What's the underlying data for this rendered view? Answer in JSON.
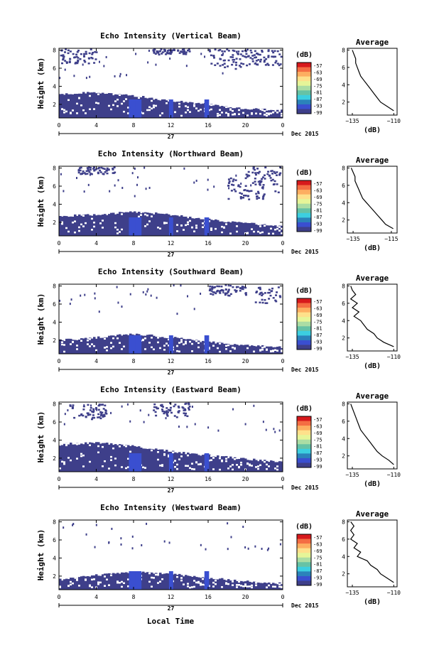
{
  "figure": {
    "xlabel": "Local Time",
    "date_label": "Dec 2015",
    "day_label": "27",
    "colorbar_unit": "(dB)",
    "colorbar_ticks": [
      "-57",
      "-63",
      "-69",
      "-75",
      "-81",
      "-87",
      "-93",
      "-99"
    ],
    "colorbar_colors": [
      "#d7191c",
      "#f46d43",
      "#fdae61",
      "#fee08b",
      "#e6f598",
      "#abdda4",
      "#66c2a5",
      "#3ccfe0",
      "#2b83ba",
      "#3a4fd0",
      "#3e3f8a"
    ],
    "background_echo_color": "#3e3f8a",
    "bright_echo_color": "#3a4fd0"
  },
  "chart_data": [
    {
      "type": "heatmap",
      "title": "Echo Intensity (Vertical Beam)",
      "ylabel": "Height (km)",
      "x_ticks": [
        "0",
        "4",
        "8",
        "12",
        "16",
        "20",
        "0"
      ],
      "y_ticks": [
        "2",
        "4",
        "6",
        "8"
      ],
      "xlim": [
        0,
        24
      ],
      "ylim": [
        0.5,
        8.2
      ],
      "layer_top_km": [
        3.1,
        3.2,
        3.2,
        3.3,
        3.3,
        3.2,
        3.1,
        3.0,
        2.9,
        2.8,
        2.6,
        2.5,
        2.4,
        2.3,
        2.2,
        2.1,
        2.0,
        1.8,
        1.7,
        1.6,
        1.5,
        1.5,
        1.4,
        1.3,
        1.3
      ],
      "upper_clutter": [
        [
          0,
          8.2,
          6.6
        ],
        [
          10,
          8.2,
          7.6
        ],
        [
          16,
          8.2,
          6.0
        ],
        [
          20,
          8.2,
          6.4
        ]
      ],
      "profile": {
        "title": "Average",
        "xlabel": "(dB)",
        "xticks": [
          "-135",
          "-110"
        ],
        "xlim": [
          -138,
          -108
        ],
        "yticks": [
          "2",
          "4",
          "6",
          "8"
        ],
        "ylim": [
          0.5,
          8.2
        ],
        "heights_km": [
          8.0,
          7.5,
          7.0,
          6.5,
          6.0,
          5.5,
          5.0,
          4.5,
          4.0,
          3.5,
          3.0,
          2.5,
          2.0,
          1.5,
          1.0
        ],
        "values_db": [
          -135,
          -134,
          -133,
          -133,
          -132,
          -131,
          -130,
          -128,
          -126,
          -124,
          -122,
          -120,
          -118,
          -114,
          -110
        ]
      }
    },
    {
      "type": "heatmap",
      "title": "Echo Intensity (Northward Beam)",
      "ylabel": "Height (km)",
      "x_ticks": [
        "0",
        "4",
        "8",
        "12",
        "16",
        "20",
        "0"
      ],
      "y_ticks": [
        "2",
        "4",
        "6",
        "8"
      ],
      "xlim": [
        0,
        24
      ],
      "ylim": [
        0.5,
        8.2
      ],
      "layer_top_km": [
        2.6,
        2.7,
        2.8,
        2.8,
        2.9,
        2.9,
        3.0,
        3.1,
        3.1,
        3.0,
        3.0,
        2.9,
        2.8,
        2.7,
        2.5,
        2.4,
        2.3,
        2.2,
        2.1,
        2.0,
        2.0,
        1.8,
        1.7,
        1.6,
        1.5
      ],
      "upper_clutter": [
        [
          2,
          8.2,
          7.4
        ],
        [
          18,
          7.0,
          4.6
        ],
        [
          20,
          8.2,
          5.2
        ]
      ],
      "profile": {
        "title": "Average",
        "xlabel": "(dB)",
        "xticks": [
          "-135",
          "-115"
        ],
        "xlim": [
          -138,
          -112
        ],
        "yticks": [
          "2",
          "4",
          "6",
          "8"
        ],
        "ylim": [
          0.5,
          8.2
        ],
        "heights_km": [
          8.0,
          7.5,
          7.0,
          6.5,
          6.0,
          5.5,
          5.0,
          4.5,
          4.0,
          3.5,
          3.0,
          2.5,
          2.0,
          1.5,
          1.0
        ],
        "values_db": [
          -136,
          -135,
          -134,
          -134,
          -133,
          -132,
          -131,
          -130,
          -128,
          -126,
          -124,
          -122,
          -120,
          -118,
          -114
        ]
      }
    },
    {
      "type": "heatmap",
      "title": "Echo Intensity (Southward Beam)",
      "ylabel": "Height (km)",
      "x_ticks": [
        "0",
        "4",
        "8",
        "12",
        "16",
        "20",
        "0"
      ],
      "y_ticks": [
        "2",
        "4",
        "6",
        "8"
      ],
      "xlim": [
        0,
        24
      ],
      "ylim": [
        0.5,
        8.2
      ],
      "layer_top_km": [
        2.0,
        2.1,
        2.1,
        2.2,
        2.3,
        2.4,
        2.5,
        2.6,
        2.7,
        2.6,
        2.5,
        2.4,
        2.3,
        2.2,
        2.0,
        1.9,
        1.8,
        1.7,
        1.6,
        1.5,
        1.5,
        1.4,
        1.3,
        1.3,
        1.2
      ],
      "upper_clutter": [
        [
          16,
          8.2,
          7.0
        ],
        [
          21,
          8.2,
          6.0
        ]
      ],
      "profile": {
        "title": "Average",
        "xlabel": "(dB)",
        "xticks": [
          "-135",
          "-110"
        ],
        "xlim": [
          -138,
          -108
        ],
        "yticks": [
          "2",
          "4",
          "6",
          "8"
        ],
        "ylim": [
          0.5,
          8.2
        ],
        "heights_km": [
          8.0,
          7.5,
          7.0,
          6.5,
          6.0,
          5.5,
          5.0,
          4.5,
          4.0,
          3.5,
          3.0,
          2.5,
          2.0,
          1.5,
          1.0
        ],
        "values_db": [
          -136,
          -135,
          -133,
          -136,
          -132,
          -135,
          -131,
          -134,
          -130,
          -128,
          -126,
          -122,
          -120,
          -116,
          -110
        ]
      }
    },
    {
      "type": "heatmap",
      "title": "Echo Intensity (Eastward Beam)",
      "ylabel": "Height (km)",
      "x_ticks": [
        "0",
        "4",
        "8",
        "12",
        "16",
        "20",
        "0"
      ],
      "y_ticks": [
        "2",
        "4",
        "6",
        "8"
      ],
      "xlim": [
        0,
        24
      ],
      "ylim": [
        0.5,
        8.2
      ],
      "layer_top_km": [
        3.5,
        3.6,
        3.6,
        3.7,
        3.7,
        3.6,
        3.5,
        3.4,
        3.3,
        3.1,
        3.0,
        2.9,
        2.8,
        2.6,
        2.5,
        2.4,
        2.3,
        2.2,
        2.1,
        2.0,
        1.9,
        1.8,
        1.7,
        1.6,
        1.5
      ],
      "upper_clutter": [
        [
          1,
          8.2,
          6.4
        ],
        [
          10,
          8.2,
          6.6
        ]
      ],
      "profile": {
        "title": "Average",
        "xlabel": "(dB)",
        "xticks": [
          "-135",
          "-110"
        ],
        "xlim": [
          -138,
          -108
        ],
        "yticks": [
          "2",
          "4",
          "6",
          "8"
        ],
        "ylim": [
          0.5,
          8.2
        ],
        "heights_km": [
          8.0,
          7.5,
          7.0,
          6.5,
          6.0,
          5.5,
          5.0,
          4.5,
          4.0,
          3.5,
          3.0,
          2.5,
          2.0,
          1.5,
          1.0
        ],
        "values_db": [
          -136,
          -135,
          -134,
          -133,
          -132,
          -131,
          -130,
          -128,
          -126,
          -124,
          -122,
          -120,
          -117,
          -113,
          -110
        ]
      }
    },
    {
      "type": "heatmap",
      "title": "Echo Intensity (Westward Beam)",
      "ylabel": "Height (km)",
      "x_ticks": [
        "0",
        "4",
        "8",
        "12",
        "16",
        "20",
        "0"
      ],
      "y_ticks": [
        "2",
        "4",
        "6",
        "8"
      ],
      "xlim": [
        0,
        24
      ],
      "ylim": [
        0.5,
        8.2
      ],
      "layer_top_km": [
        1.6,
        1.7,
        1.8,
        2.0,
        2.1,
        2.2,
        2.3,
        2.4,
        2.5,
        2.5,
        2.4,
        2.3,
        2.2,
        2.1,
        2.0,
        1.9,
        1.8,
        1.7,
        1.6,
        1.5,
        1.4,
        1.3,
        1.3,
        1.2,
        1.2
      ],
      "upper_clutter": [],
      "profile": {
        "title": "Average",
        "xlabel": "(dB)",
        "xticks": [
          "-135",
          "-110"
        ],
        "xlim": [
          -138,
          -108
        ],
        "yticks": [
          "2",
          "4",
          "6",
          "8"
        ],
        "ylim": [
          0.5,
          8.2
        ],
        "heights_km": [
          8.0,
          7.5,
          7.0,
          6.5,
          6.0,
          5.5,
          5.0,
          4.5,
          4.0,
          3.5,
          3.0,
          2.5,
          2.0,
          1.5,
          1.0
        ],
        "values_db": [
          -136,
          -134,
          -136,
          -134,
          -136,
          -132,
          -134,
          -130,
          -132,
          -126,
          -124,
          -120,
          -118,
          -114,
          -110
        ]
      }
    }
  ]
}
